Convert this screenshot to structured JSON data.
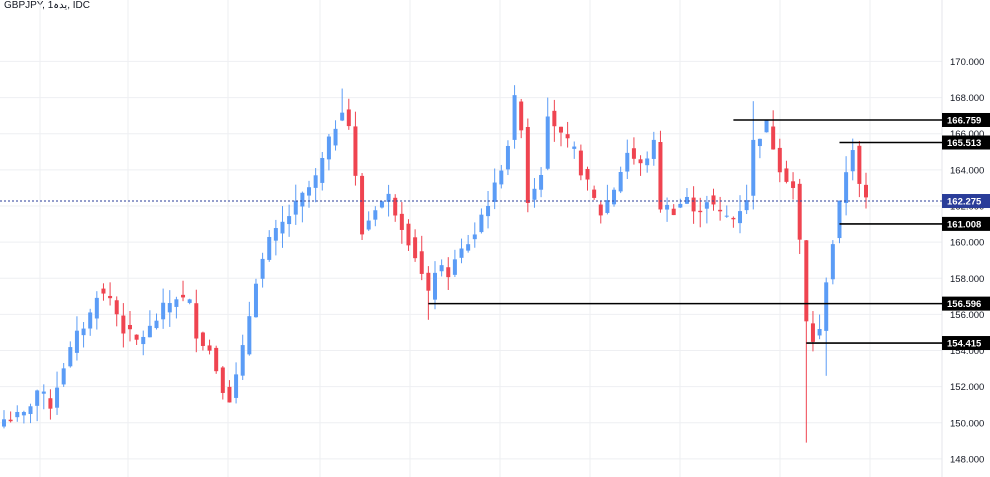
{
  "header": {
    "symbol_label": "GBPJPY, 1یدہ, IDC"
  },
  "colors": {
    "up": "#5b9cf6",
    "down": "#ef4450",
    "grid": "#eeeff2",
    "axis_border": "#e4e6eb",
    "level_line": "#000000",
    "current_line": "#2a3d99",
    "current_tag": "#2a3d99",
    "level_tag": "#000000"
  },
  "chart_data": {
    "type": "candlestick",
    "title": "GBPJPY",
    "timeframe": "1یدہ",
    "source": "IDC",
    "ylim": [
      147.0,
      173.4
    ],
    "y_ticks": [
      "148.000",
      "150.000",
      "152.000",
      "154.000",
      "156.000",
      "158.000",
      "160.000",
      "162.000",
      "164.000",
      "166.000",
      "168.000",
      "170.000"
    ],
    "current_price": "162.275",
    "horizontal_levels": [
      {
        "label": "166.759",
        "value": 166.759,
        "x_start": 110
      },
      {
        "label": "165.513",
        "value": 165.513,
        "x_start": 126
      },
      {
        "label": "161.008",
        "value": 161.008,
        "x_start": 126
      },
      {
        "label": "156.596",
        "value": 156.596,
        "x_start": 64
      },
      {
        "label": "154.415",
        "value": 154.415,
        "x_start": 121
      }
    ],
    "trend_anchors": [
      [
        0,
        150.2
      ],
      [
        3,
        150.4
      ],
      [
        5,
        151.8
      ],
      [
        7,
        151.0
      ],
      [
        9,
        153.2
      ],
      [
        11,
        154.8
      ],
      [
        13,
        156.0
      ],
      [
        14,
        157.2
      ],
      [
        16,
        156.9
      ],
      [
        18,
        155.2
      ],
      [
        20,
        154.5
      ],
      [
        22,
        155.2
      ],
      [
        24,
        156.3
      ],
      [
        26,
        157.0
      ],
      [
        28,
        156.6
      ],
      [
        29,
        155.0
      ],
      [
        31,
        154.0
      ],
      [
        33,
        152.0
      ],
      [
        34,
        151.4
      ],
      [
        35,
        152.5
      ],
      [
        36,
        154.0
      ],
      [
        38,
        158.0
      ],
      [
        40,
        160.0
      ],
      [
        42,
        161.0
      ],
      [
        43,
        161.5
      ],
      [
        45,
        162.5
      ],
      [
        47,
        163.5
      ],
      [
        49,
        165.5
      ],
      [
        51,
        167.5
      ],
      [
        52,
        166.5
      ],
      [
        53,
        163.5
      ],
      [
        54,
        160.5
      ],
      [
        56,
        162.0
      ],
      [
        58,
        162.5
      ],
      [
        60,
        161.0
      ],
      [
        62,
        159.3
      ],
      [
        64,
        157.0
      ],
      [
        65,
        158.5
      ],
      [
        67,
        158.3
      ],
      [
        69,
        159.5
      ],
      [
        71,
        160.5
      ],
      [
        72,
        161.5
      ],
      [
        74,
        163.0
      ],
      [
        76,
        165.5
      ],
      [
        77,
        167.8
      ],
      [
        78,
        166.5
      ],
      [
        79,
        162.3
      ],
      [
        81,
        164.0
      ],
      [
        82,
        167.3
      ],
      [
        84,
        165.8
      ],
      [
        86,
        165.0
      ],
      [
        87,
        164.0
      ],
      [
        89,
        162.3
      ],
      [
        90,
        161.6
      ],
      [
        92,
        163.0
      ],
      [
        94,
        165.0
      ],
      [
        96,
        164.2
      ],
      [
        98,
        165.4
      ],
      [
        99,
        162.0
      ],
      [
        101,
        161.8
      ],
      [
        103,
        162.5
      ],
      [
        104,
        161.5
      ],
      [
        106,
        162.4
      ],
      [
        108,
        161.5
      ],
      [
        110,
        161.3
      ],
      [
        112,
        162.5
      ],
      [
        113,
        165.5
      ],
      [
        115,
        166.5
      ],
      [
        117,
        164.2
      ],
      [
        119,
        163.0
      ],
      [
        120,
        160.0
      ],
      [
        121,
        155.5
      ],
      [
        122,
        154.6
      ],
      [
        123,
        155.0
      ],
      [
        124,
        158.0
      ],
      [
        125,
        160.0
      ],
      [
        126,
        162.0
      ],
      [
        127,
        164.0
      ],
      [
        128,
        165.3
      ],
      [
        129,
        163.0
      ],
      [
        130,
        162.3
      ]
    ]
  }
}
